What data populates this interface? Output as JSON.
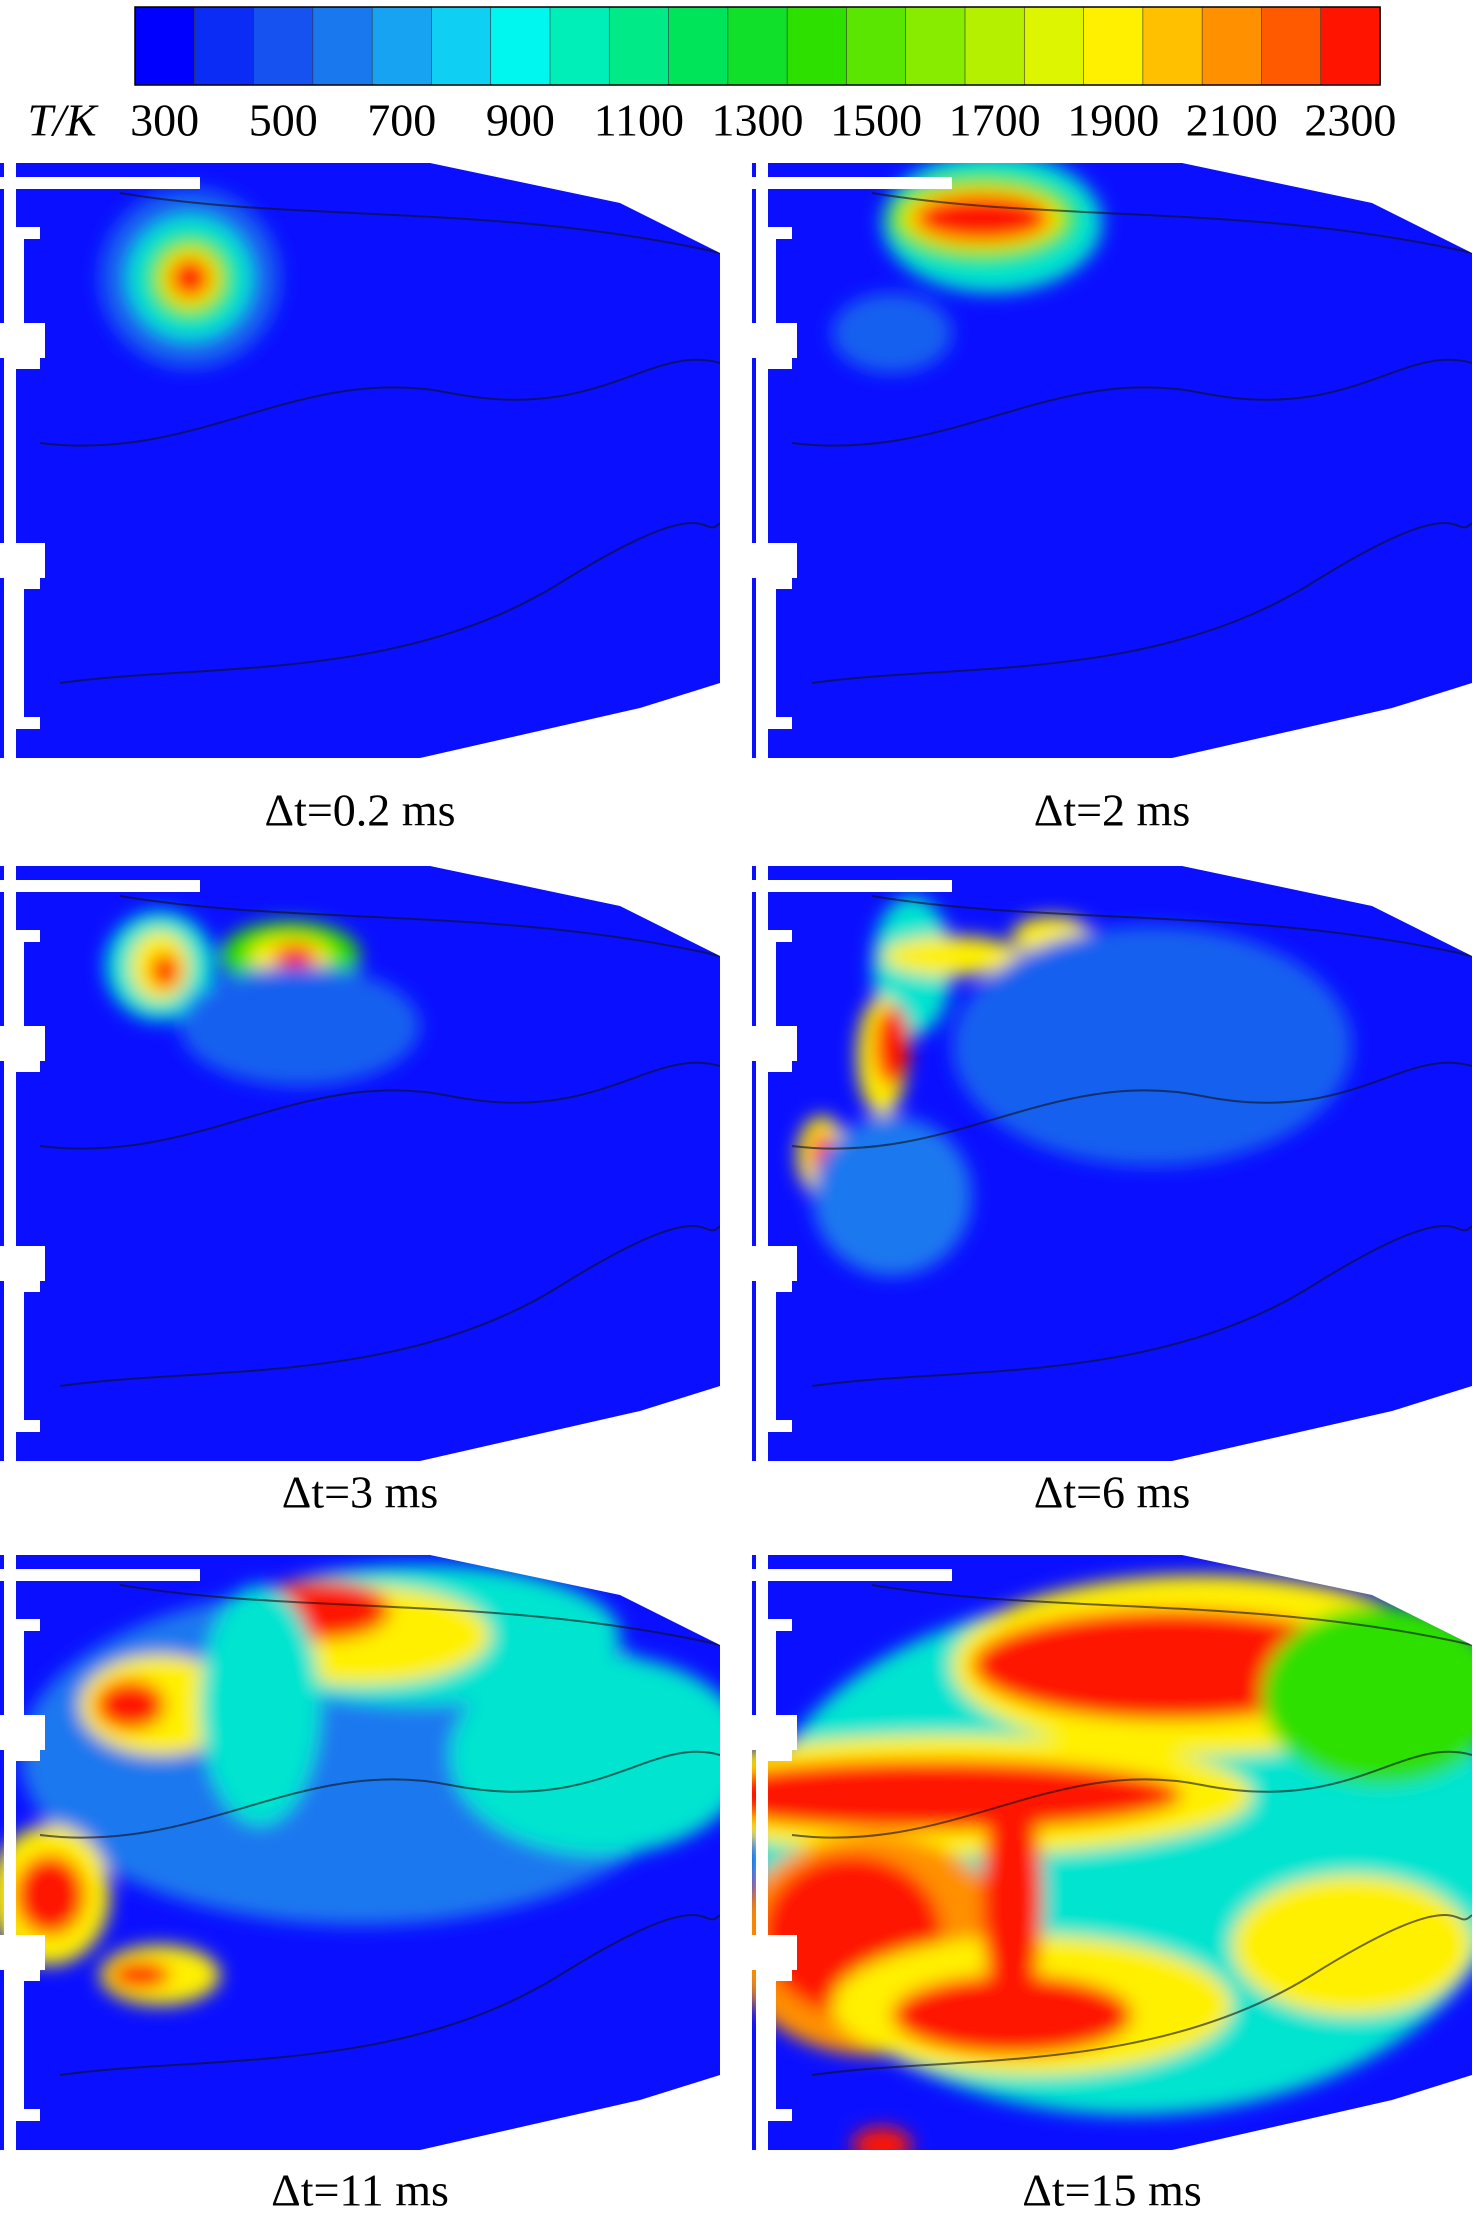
{
  "colorbar": {
    "label": "T/K",
    "lim": [
      250,
      2350
    ],
    "ticks": [
      300,
      500,
      700,
      900,
      1100,
      1300,
      1500,
      1700,
      1900,
      2100,
      2300
    ],
    "colors": [
      "#0000ff",
      "#0a2cf4",
      "#1552ef",
      "#1a78ef",
      "#17a3f2",
      "#0fd0f3",
      "#00f7ef",
      "#00efb8",
      "#00ea88",
      "#00e45a",
      "#10e02a",
      "#2ee000",
      "#5ae600",
      "#88ec00",
      "#b4f000",
      "#def500",
      "#fff000",
      "#ffc000",
      "#ff9000",
      "#ff5a00",
      "#ff1400"
    ]
  },
  "panels": [
    {
      "caption": "Δt=0.2 ms"
    },
    {
      "caption": "Δt=2 ms"
    },
    {
      "caption": "Δt=3 ms"
    },
    {
      "caption": "Δt=6 ms"
    },
    {
      "caption": "Δt=11 ms"
    },
    {
      "caption": "Δt=15 ms"
    }
  ]
}
